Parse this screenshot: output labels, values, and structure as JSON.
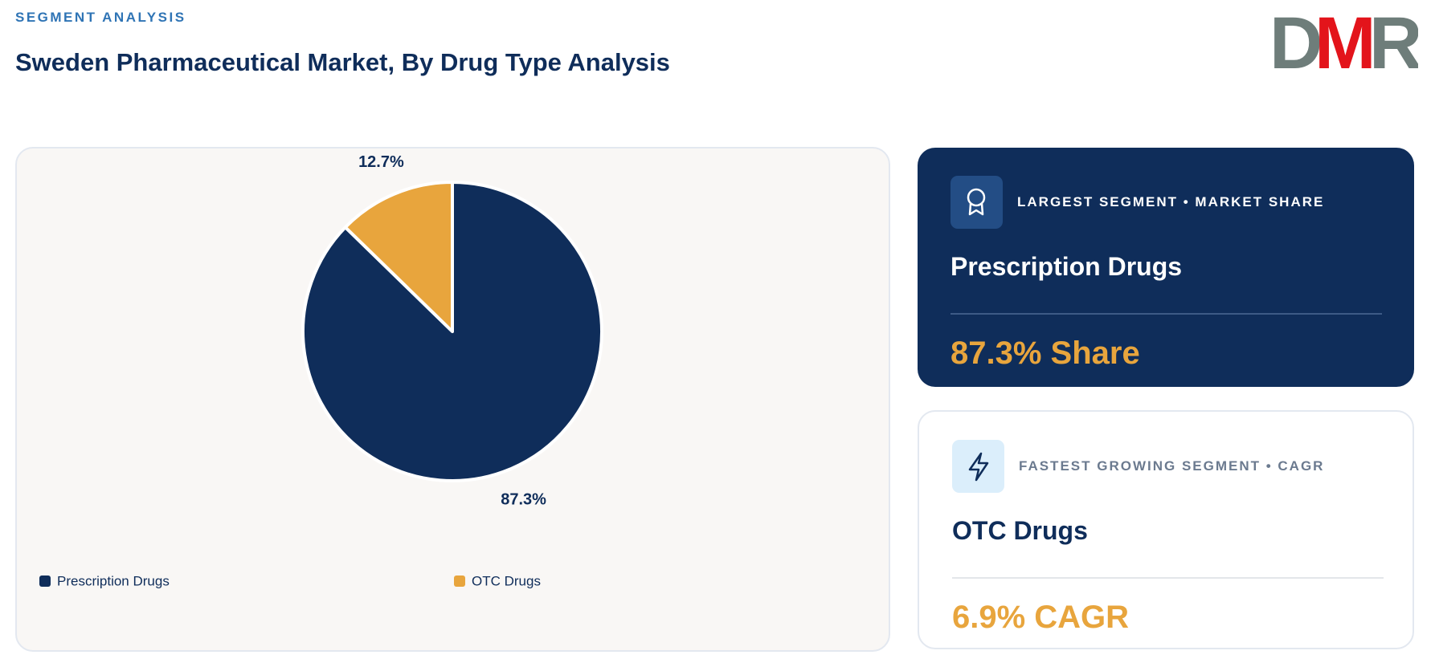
{
  "header": {
    "eyebrow": "SEGMENT ANALYSIS",
    "title": "Sweden Pharmaceutical Market, By Drug Type Analysis"
  },
  "logo": [
    "D",
    "M",
    "R"
  ],
  "chart_data": {
    "type": "pie",
    "categories": [
      "Prescription Drugs",
      "OTC Drugs"
    ],
    "values": [
      87.3,
      12.7
    ],
    "value_labels": [
      "87.3%",
      "12.7%"
    ],
    "colors": [
      "#0f2d5a",
      "#e8a53d"
    ]
  },
  "cards": [
    {
      "label": "LARGEST SEGMENT • MARKET SHARE",
      "name": "Prescription Drugs",
      "value": "87.3% Share"
    },
    {
      "label": "FASTEST GROWING SEGMENT • CAGR",
      "name": "OTC Drugs",
      "value": "6.9% CAGR"
    }
  ]
}
